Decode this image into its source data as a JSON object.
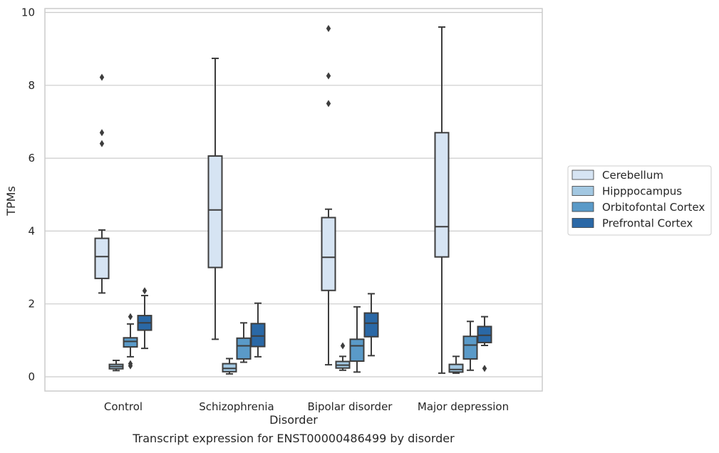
{
  "caption": "Transcript expression for ENST00000486499 by disorder",
  "chart_data": {
    "type": "boxplot",
    "xlabel": "Disorder",
    "ylabel": "TPMs",
    "ylim": [
      -0.4,
      10.1
    ],
    "yticks": [
      0,
      2,
      4,
      6,
      8,
      10
    ],
    "grid": "horizontal",
    "legend_position": "right",
    "categories": [
      "Control",
      "Schizophrenia",
      "Bipolar disorder",
      "Major depression"
    ],
    "series": [
      {
        "name": "Cerebellum",
        "color": "#d6e4f3",
        "boxes": [
          {
            "whisker_low": 2.3,
            "q1": 2.7,
            "median": 3.3,
            "q3": 3.8,
            "whisker_high": 4.03,
            "outliers": [
              6.4,
              6.7,
              8.22
            ]
          },
          {
            "whisker_low": 1.03,
            "q1": 3.0,
            "median": 4.58,
            "q3": 6.06,
            "whisker_high": 8.74,
            "outliers": []
          },
          {
            "whisker_low": 0.33,
            "q1": 2.37,
            "median": 3.28,
            "q3": 4.37,
            "whisker_high": 4.6,
            "outliers": [
              7.5,
              8.26,
              9.56
            ]
          },
          {
            "whisker_low": 0.1,
            "q1": 3.29,
            "median": 4.12,
            "q3": 6.7,
            "whisker_high": 9.6,
            "outliers": []
          }
        ]
      },
      {
        "name": "Hipppocampus",
        "color": "#a3c8e2",
        "boxes": [
          {
            "whisker_low": 0.17,
            "q1": 0.22,
            "median": 0.28,
            "q3": 0.34,
            "whisker_high": 0.45,
            "outliers": []
          },
          {
            "whisker_low": 0.08,
            "q1": 0.14,
            "median": 0.23,
            "q3": 0.36,
            "whisker_high": 0.5,
            "outliers": []
          },
          {
            "whisker_low": 0.18,
            "q1": 0.24,
            "median": 0.32,
            "q3": 0.42,
            "whisker_high": 0.56,
            "outliers": [
              0.85
            ]
          },
          {
            "whisker_low": 0.1,
            "q1": 0.13,
            "median": 0.2,
            "q3": 0.34,
            "whisker_high": 0.56,
            "outliers": []
          }
        ]
      },
      {
        "name": "Orbitofontal Cortex",
        "color": "#5a9ac8",
        "boxes": [
          {
            "whisker_low": 0.55,
            "q1": 0.82,
            "median": 0.97,
            "q3": 1.07,
            "whisker_high": 1.45,
            "outliers": [
              0.3,
              0.36,
              1.65
            ]
          },
          {
            "whisker_low": 0.4,
            "q1": 0.49,
            "median": 0.85,
            "q3": 1.06,
            "whisker_high": 1.48,
            "outliers": []
          },
          {
            "whisker_low": 0.13,
            "q1": 0.43,
            "median": 0.85,
            "q3": 1.03,
            "whisker_high": 1.92,
            "outliers": []
          },
          {
            "whisker_low": 0.18,
            "q1": 0.49,
            "median": 0.87,
            "q3": 1.11,
            "whisker_high": 1.52,
            "outliers": []
          }
        ]
      },
      {
        "name": "Prefrontal Cortex",
        "color": "#2a68a6",
        "boxes": [
          {
            "whisker_low": 0.78,
            "q1": 1.28,
            "median": 1.48,
            "q3": 1.68,
            "whisker_high": 2.23,
            "outliers": [
              2.36
            ]
          },
          {
            "whisker_low": 0.55,
            "q1": 0.83,
            "median": 1.12,
            "q3": 1.46,
            "whisker_high": 2.02,
            "outliers": []
          },
          {
            "whisker_low": 0.58,
            "q1": 1.1,
            "median": 1.47,
            "q3": 1.75,
            "whisker_high": 2.28,
            "outliers": []
          },
          {
            "whisker_low": 0.86,
            "q1": 0.94,
            "median": 1.14,
            "q3": 1.38,
            "whisker_high": 1.65,
            "outliers": [
              0.23
            ]
          }
        ]
      }
    ]
  }
}
